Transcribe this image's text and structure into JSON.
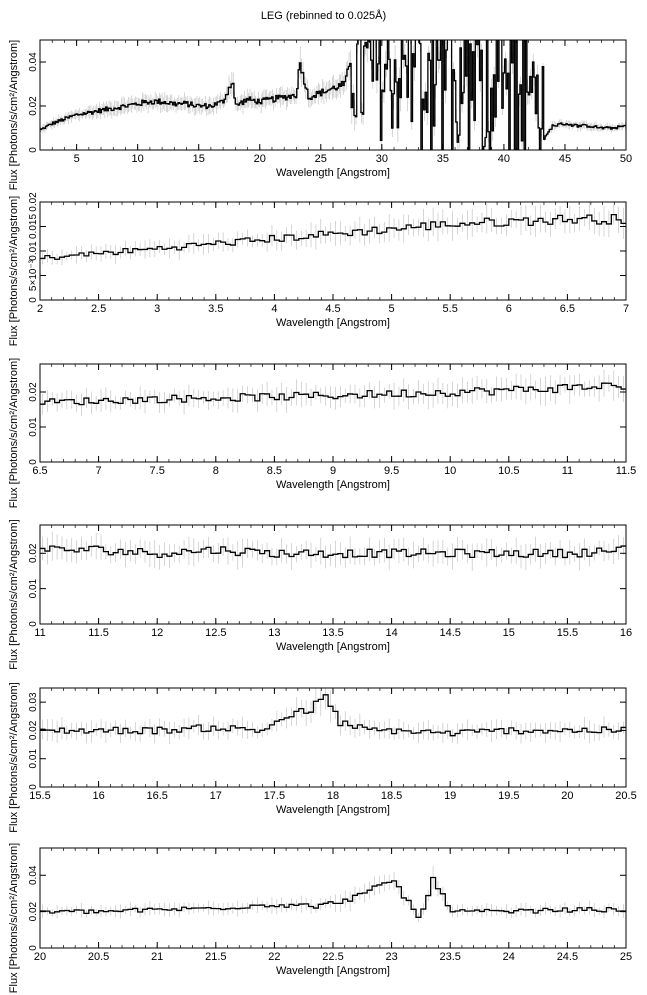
{
  "title": "LEG (rebinned to 0.025Å)",
  "colors": {
    "line": "#000000",
    "errorbar": "#bbbbbb",
    "axis": "#000000",
    "background": "#ffffff"
  },
  "chart_data": [
    {
      "type": "line",
      "style": "step-with-errorbars",
      "xlabel": "Wavelength [Angstrom]",
      "ylabel": "Flux [Photons/s/cm²/Angstrom]",
      "xlim": [
        2,
        50
      ],
      "ylim": [
        0,
        0.05
      ],
      "xticks": [
        "5",
        "10",
        "15",
        "20",
        "25",
        "30",
        "35",
        "40",
        "45",
        "50"
      ],
      "yticks": [
        "0",
        "0.02",
        "0.04"
      ],
      "series": [
        {
          "x": [
            2,
            3,
            4,
            5,
            6,
            7,
            8,
            9,
            10,
            11,
            12,
            13,
            14,
            15,
            16,
            17,
            17.8,
            18,
            19,
            20,
            21,
            22,
            23,
            23.3,
            24,
            25,
            26,
            27,
            27.5,
            28,
            29,
            30,
            31,
            32,
            33,
            34,
            35,
            36,
            37,
            38,
            39,
            40,
            41,
            42,
            43,
            43.3,
            44,
            45,
            46,
            47,
            48,
            49,
            50
          ],
          "y": [
            0.009,
            0.012,
            0.014,
            0.016,
            0.017,
            0.018,
            0.019,
            0.02,
            0.021,
            0.022,
            0.022,
            0.021,
            0.021,
            0.02,
            0.02,
            0.022,
            0.032,
            0.02,
            0.023,
            0.022,
            0.023,
            0.024,
            0.025,
            0.04,
            0.024,
            0.026,
            0.028,
            0.03,
            0.042,
            0.033,
            0.035,
            0.034,
            0.036,
            0.035,
            0.033,
            0.03,
            0.032,
            0.03,
            0.031,
            0.03,
            0.028,
            0.03,
            0.029,
            0.031,
            0.028,
            0.005,
            0.011,
            0.012,
            0.011,
            0.011,
            0.01,
            0.01,
            0.011
          ],
          "noisy_above": 27.5
        }
      ]
    },
    {
      "type": "line",
      "style": "step-with-errorbars",
      "xlabel": "Wavelength [Angstrom]",
      "ylabel": "Flux [Photons/s/cm²/Angstrom]",
      "xlim": [
        2,
        7
      ],
      "ylim": [
        0,
        0.02
      ],
      "xticks": [
        "2",
        "2.5",
        "3",
        "3.5",
        "4",
        "4.5",
        "5",
        "5.5",
        "6",
        "6.5",
        "7"
      ],
      "yticks": [
        "0",
        "5×10⁻³",
        "0.01",
        "0.015",
        "0.02"
      ],
      "series": [
        {
          "x": [
            2,
            2.5,
            3,
            3.5,
            4,
            4.5,
            5,
            5.5,
            6,
            6.5,
            7
          ],
          "y": [
            0.0085,
            0.0095,
            0.0105,
            0.0115,
            0.0125,
            0.0135,
            0.0145,
            0.0155,
            0.016,
            0.0165,
            0.0165
          ]
        }
      ]
    },
    {
      "type": "line",
      "style": "step-with-errorbars",
      "xlabel": "Wavelength [Angstrom]",
      "ylabel": "Flux [Photons/s/cm²/Angstrom]",
      "xlim": [
        6.5,
        11.5
      ],
      "ylim": [
        0,
        0.028
      ],
      "xticks": [
        "6.5",
        "7",
        "7.5",
        "8",
        "8.5",
        "9",
        "9.5",
        "10",
        "10.5",
        "11",
        "11.5"
      ],
      "yticks": [
        "0",
        "0.01",
        "0.02"
      ],
      "series": [
        {
          "x": [
            6.5,
            7,
            7.5,
            8,
            8.5,
            9,
            9.5,
            10,
            10.5,
            11,
            11.5
          ],
          "y": [
            0.017,
            0.0175,
            0.018,
            0.0183,
            0.0186,
            0.019,
            0.0195,
            0.02,
            0.0205,
            0.0212,
            0.022
          ]
        }
      ]
    },
    {
      "type": "line",
      "style": "step-with-errorbars",
      "xlabel": "Wavelength [Angstrom]",
      "ylabel": "Flux [Photons/s/cm²/Angstrom]",
      "xlim": [
        11,
        16
      ],
      "ylim": [
        0,
        0.028
      ],
      "xticks": [
        "11",
        "11.5",
        "12",
        "12.5",
        "13",
        "13.5",
        "14",
        "14.5",
        "15",
        "15.5",
        "16"
      ],
      "yticks": [
        "0",
        "0.01",
        "0.02"
      ],
      "series": [
        {
          "x": [
            11,
            11.5,
            12,
            12.5,
            13,
            13.5,
            14,
            14.5,
            15,
            15.5,
            16
          ],
          "y": [
            0.021,
            0.021,
            0.02,
            0.021,
            0.02,
            0.02,
            0.02,
            0.02,
            0.02,
            0.02,
            0.021
          ]
        }
      ]
    },
    {
      "type": "line",
      "style": "step-with-errorbars",
      "xlabel": "Wavelength [Angstrom]",
      "ylabel": "Flux [Photons/s/cm²/Angstrom]",
      "xlim": [
        15.5,
        20.5
      ],
      "ylim": [
        0,
        0.035
      ],
      "xticks": [
        "15.5",
        "16",
        "16.5",
        "17",
        "17.5",
        "18",
        "18.5",
        "19",
        "19.5",
        "20",
        "20.5"
      ],
      "yticks": [
        "0",
        "0.01",
        "0.02",
        "0.03"
      ],
      "series": [
        {
          "x": [
            15.5,
            16,
            16.5,
            17,
            17.4,
            17.6,
            17.8,
            17.95,
            18.05,
            18.3,
            18.5,
            19,
            19.5,
            20,
            20.5
          ],
          "y": [
            0.02,
            0.02,
            0.02,
            0.021,
            0.02,
            0.025,
            0.027,
            0.032,
            0.023,
            0.02,
            0.02,
            0.019,
            0.02,
            0.02,
            0.02
          ]
        }
      ]
    },
    {
      "type": "line",
      "style": "step-with-errorbars",
      "xlabel": "Wavelength [Angstrom]",
      "ylabel": "Flux [Photons/s/cm²/Angstrom]",
      "xlim": [
        20,
        25
      ],
      "ylim": [
        0,
        0.055
      ],
      "xticks": [
        "20",
        "20.5",
        "21",
        "21.5",
        "22",
        "22.5",
        "23",
        "23.5",
        "24",
        "24.5",
        "25"
      ],
      "yticks": [
        "0",
        "0.02",
        "0.04"
      ],
      "series": [
        {
          "x": [
            20,
            20.5,
            21,
            21.5,
            22,
            22.4,
            22.8,
            23,
            23.15,
            23.25,
            23.35,
            23.5,
            24,
            24.5,
            25
          ],
          "y": [
            0.02,
            0.02,
            0.021,
            0.022,
            0.024,
            0.023,
            0.03,
            0.038,
            0.025,
            0.015,
            0.04,
            0.02,
            0.02,
            0.021,
            0.021
          ]
        }
      ]
    }
  ]
}
